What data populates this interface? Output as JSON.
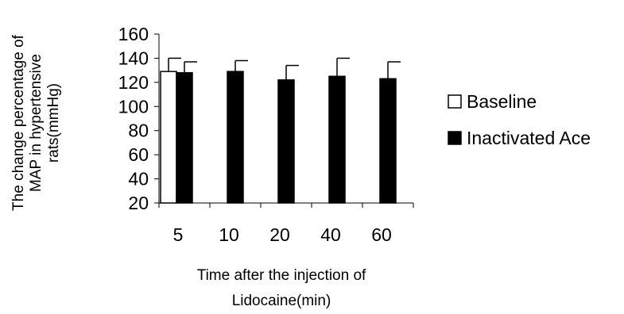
{
  "chart_data": {
    "type": "bar",
    "categories": [
      "5",
      "10",
      "20",
      "40",
      "60"
    ],
    "series": [
      {
        "name": "Baseline",
        "color": "#ffffff",
        "values": [
          129,
          null,
          null,
          null,
          null
        ],
        "errors": [
          11,
          null,
          null,
          null,
          null
        ]
      },
      {
        "name": "Inactivated Ace",
        "color": "#000000",
        "values": [
          128,
          129,
          122,
          125,
          123
        ],
        "errors": [
          9,
          9,
          12,
          15,
          14
        ]
      }
    ],
    "ylabel_lines": [
      "The change percentage of",
      "MAP in hypertensive",
      "rats(mmHg)"
    ],
    "xlabel_lines": [
      "Time after the injection of",
      "Lidocaine(min)"
    ],
    "ylim": [
      20,
      160
    ],
    "yticks": [
      20,
      40,
      60,
      80,
      100,
      120,
      140,
      160
    ],
    "grid": false,
    "legend_position": "right"
  }
}
